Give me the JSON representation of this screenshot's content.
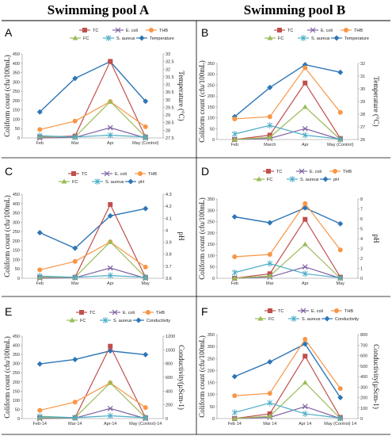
{
  "figure": {
    "col_a_title": "Swimming pool A",
    "col_b_title": "Swimming pool B"
  },
  "colors": {
    "TC": "#c0504d",
    "FC": "#9bbb59",
    "E. coli": "#8064a2",
    "S. aureus": "#4bacc6",
    "THB": "#f79646",
    "secondary": "#2e75b6"
  },
  "chart_data": [
    {
      "panel": "A",
      "type": "line",
      "categories": [
        "Feb",
        "Mar",
        "Apr",
        "May (Control)"
      ],
      "ylabel": "Coliform count (cfu/100mL)",
      "ylim": [
        0,
        450
      ],
      "yticks": [
        0,
        50,
        100,
        150,
        200,
        250,
        300,
        350,
        400,
        450
      ],
      "series": [
        {
          "name": "TC",
          "marker": "square",
          "values": [
            5,
            10,
            410,
            5
          ]
        },
        {
          "name": "E. coli",
          "marker": "x",
          "values": [
            0,
            3,
            55,
            0
          ]
        },
        {
          "name": "THB",
          "marker": "circle",
          "values": [
            45,
            90,
            195,
            60
          ]
        },
        {
          "name": "FC",
          "marker": "triangle",
          "values": [
            8,
            5,
            195,
            5
          ]
        },
        {
          "name": "S. aureus",
          "marker": "star",
          "values": [
            12,
            5,
            15,
            5
          ]
        }
      ],
      "secondary": {
        "name": "Temperature",
        "ylabel": "Temperature (°C)",
        "ylim": [
          27.5,
          33
        ],
        "yticks": [
          "27.5",
          "28",
          "28.5",
          "29",
          "29.5",
          "30",
          "30.5",
          "31",
          "31.5",
          "32",
          "32.5",
          "33"
        ],
        "values": [
          29.2,
          31.4,
          32.5,
          29.9
        ]
      }
    },
    {
      "panel": "B",
      "type": "line",
      "categories": [
        "Feb",
        "March",
        "Apr",
        "May (Control)"
      ],
      "ylabel": "Coliform count (cfu/100mL)",
      "ylim": [
        0,
        350
      ],
      "yticks": [
        0,
        50,
        100,
        150,
        200,
        250,
        300,
        350
      ],
      "series": [
        {
          "name": "TC",
          "marker": "square",
          "values": [
            0,
            20,
            260,
            5
          ]
        },
        {
          "name": "E. coli",
          "marker": "x",
          "values": [
            0,
            5,
            50,
            0
          ]
        },
        {
          "name": "THB",
          "marker": "circle",
          "values": [
            95,
            105,
            330,
            125
          ]
        },
        {
          "name": "FC",
          "marker": "triangle",
          "values": [
            0,
            10,
            150,
            0
          ]
        },
        {
          "name": "S. aureus",
          "marker": "star",
          "values": [
            25,
            65,
            20,
            2
          ]
        }
      ],
      "secondary": {
        "name": "Temperature",
        "ylabel": "Temperature (°C)",
        "ylim": [
          26,
          32
        ],
        "yticks": [
          "26",
          "27",
          "28",
          "29",
          "30",
          "31",
          "32"
        ],
        "values": [
          27.8,
          30.1,
          31.9,
          31.3
        ]
      }
    },
    {
      "panel": "C",
      "type": "line",
      "categories": [
        "Feb",
        "Mar",
        "Apr",
        "May"
      ],
      "ylabel": "Coliform count (cfu/100mL)",
      "ylim": [
        0,
        450
      ],
      "yticks": [
        0,
        50,
        100,
        150,
        200,
        250,
        300,
        350,
        400,
        450
      ],
      "series": [
        {
          "name": "TC",
          "marker": "square",
          "values": [
            5,
            5,
            395,
            5
          ]
        },
        {
          "name": "E. coli",
          "marker": "x",
          "values": [
            0,
            3,
            55,
            0
          ]
        },
        {
          "name": "THB",
          "marker": "circle",
          "values": [
            45,
            90,
            195,
            60
          ]
        },
        {
          "name": "FC",
          "marker": "triangle",
          "values": [
            5,
            5,
            195,
            5
          ]
        },
        {
          "name": "S. aureus",
          "marker": "star",
          "values": [
            12,
            5,
            15,
            5
          ]
        }
      ],
      "secondary": {
        "name": "pH",
        "ylabel": "pH",
        "ylim": [
          3.6,
          4.3
        ],
        "yticks": [
          "3.6",
          "3.7",
          "3.8",
          "3.9",
          "4",
          "4.1",
          "4.2",
          "4.3"
        ],
        "values": [
          3.98,
          3.85,
          4.12,
          4.18
        ]
      }
    },
    {
      "panel": "D",
      "type": "line",
      "categories": [
        "Feb",
        "Mar",
        "Apr",
        "May"
      ],
      "ylabel": "Coliform count (cfu/100mL)",
      "ylim": [
        0,
        350
      ],
      "yticks": [
        0,
        50,
        100,
        150,
        200,
        250,
        300,
        350
      ],
      "series": [
        {
          "name": "TC",
          "marker": "square",
          "values": [
            0,
            20,
            260,
            5
          ]
        },
        {
          "name": "E. coli",
          "marker": "x",
          "values": [
            0,
            5,
            50,
            0
          ]
        },
        {
          "name": "THB",
          "marker": "circle",
          "values": [
            95,
            105,
            330,
            125
          ]
        },
        {
          "name": "FC",
          "marker": "triangle",
          "values": [
            0,
            10,
            150,
            0
          ]
        },
        {
          "name": "S. aureus",
          "marker": "star",
          "values": [
            25,
            65,
            20,
            2
          ]
        }
      ],
      "secondary": {
        "name": "pH",
        "ylabel": "pH",
        "ylim": [
          0,
          8
        ],
        "yticks": [
          "0",
          "1",
          "2",
          "3",
          "4",
          "5",
          "6",
          "7",
          "8"
        ],
        "values": [
          6.2,
          5.6,
          7.1,
          5.5
        ]
      }
    },
    {
      "panel": "E",
      "type": "line",
      "categories": [
        "Feb-14",
        "Mar-14",
        "Apr-14",
        "May (Control)-14"
      ],
      "ylabel": "Coliform count (cfu/100mL)",
      "ylim": [
        0,
        450
      ],
      "yticks": [
        0,
        50,
        100,
        150,
        200,
        250,
        300,
        350,
        400,
        450
      ],
      "series": [
        {
          "name": "TC",
          "marker": "square",
          "values": [
            5,
            5,
            395,
            5
          ]
        },
        {
          "name": "E. coli",
          "marker": "x",
          "values": [
            0,
            3,
            55,
            0
          ]
        },
        {
          "name": "THB",
          "marker": "circle",
          "values": [
            45,
            90,
            195,
            60
          ]
        },
        {
          "name": "FC",
          "marker": "triangle",
          "values": [
            5,
            5,
            195,
            5
          ]
        },
        {
          "name": "S. aureus",
          "marker": "star",
          "values": [
            12,
            5,
            15,
            5
          ]
        }
      ],
      "secondary": {
        "name": "Conductivity",
        "ylabel": "Conductivity(µScm-1)",
        "ylim": [
          0,
          1200
        ],
        "yticks": [
          "0",
          "200",
          "400",
          "600",
          "800",
          "1000",
          "1200"
        ],
        "values": [
          795,
          860,
          985,
          930
        ]
      }
    },
    {
      "panel": "F",
      "type": "line",
      "categories": [
        "Feb 14",
        "Mar 14",
        "Apr 14",
        "May (Control) 14"
      ],
      "ylabel": "Coliform count (cfu/100mL)",
      "ylim": [
        0,
        350
      ],
      "yticks": [
        0,
        50,
        100,
        150,
        200,
        250,
        300,
        350
      ],
      "series": [
        {
          "name": "TC",
          "marker": "square",
          "values": [
            0,
            20,
            260,
            5
          ]
        },
        {
          "name": "E. coli",
          "marker": "x",
          "values": [
            0,
            5,
            50,
            0
          ]
        },
        {
          "name": "THB",
          "marker": "circle",
          "values": [
            95,
            105,
            330,
            125
          ]
        },
        {
          "name": "FC",
          "marker": "triangle",
          "values": [
            0,
            10,
            150,
            0
          ]
        },
        {
          "name": "S. aureus",
          "marker": "star",
          "values": [
            25,
            65,
            20,
            2
          ]
        }
      ],
      "secondary": {
        "name": "Conductivity",
        "ylabel": "Conductivity(µScm-1)",
        "ylim": [
          0,
          800
        ],
        "yticks": [
          "0",
          "100",
          "200",
          "300",
          "400",
          "500",
          "600",
          "700",
          "800"
        ],
        "values": [
          400,
          540,
          710,
          200
        ]
      }
    }
  ]
}
